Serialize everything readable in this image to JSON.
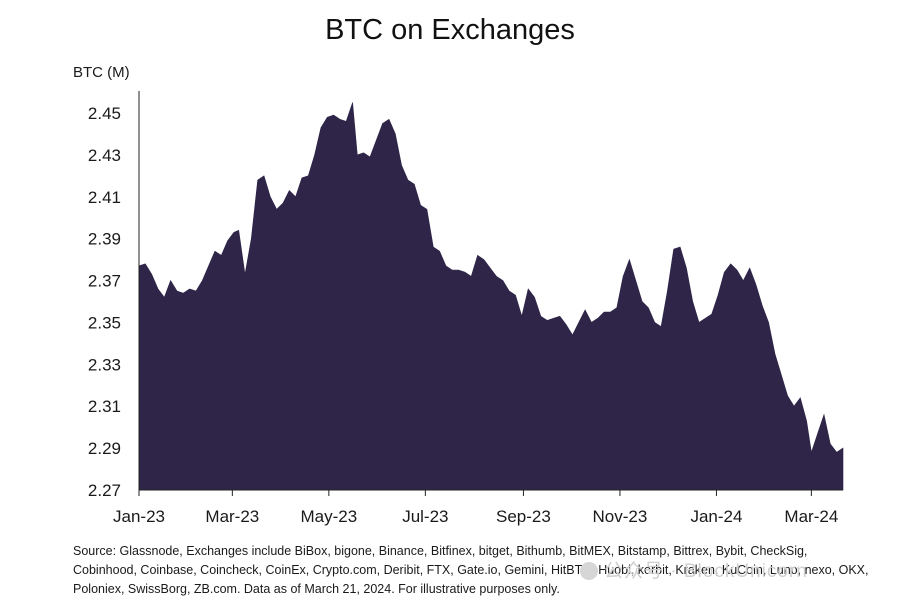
{
  "chart_data": {
    "type": "area",
    "title": "BTC on Exchanges",
    "ylabel": "BTC (M)",
    "xlabel": "",
    "ylim": [
      2.27,
      2.46
    ],
    "y_ticks": [
      "2.45",
      "2.43",
      "2.41",
      "2.39",
      "2.37",
      "2.35",
      "2.33",
      "2.31",
      "2.29",
      "2.27"
    ],
    "x_ticks": [
      "Jan-23",
      "Mar-23",
      "May-23",
      "Jul-23",
      "Sep-23",
      "Nov-23",
      "Jan-24",
      "Mar-24"
    ],
    "x_tick_dates": [
      "2023-01-01",
      "2023-03-01",
      "2023-05-01",
      "2023-07-01",
      "2023-09-01",
      "2023-11-01",
      "2024-01-01",
      "2024-03-01"
    ],
    "x_range": [
      "2023-01-01",
      "2024-03-21"
    ],
    "grid": false,
    "legend": "none",
    "series": [
      {
        "values": [
          [
            "2023-01-01",
            2.377
          ],
          [
            "2023-01-05",
            2.378
          ],
          [
            "2023-01-09",
            2.373
          ],
          [
            "2023-01-13",
            2.366
          ],
          [
            "2023-01-17",
            2.362
          ],
          [
            "2023-01-21",
            2.37
          ],
          [
            "2023-01-25",
            2.365
          ],
          [
            "2023-01-29",
            2.364
          ],
          [
            "2023-02-02",
            2.366
          ],
          [
            "2023-02-06",
            2.365
          ],
          [
            "2023-02-10",
            2.37
          ],
          [
            "2023-02-14",
            2.377
          ],
          [
            "2023-02-18",
            2.384
          ],
          [
            "2023-02-22",
            2.382
          ],
          [
            "2023-02-26",
            2.389
          ],
          [
            "2023-03-02",
            2.393
          ],
          [
            "2023-03-05",
            2.394
          ],
          [
            "2023-03-09",
            2.373
          ],
          [
            "2023-03-13",
            2.39
          ],
          [
            "2023-03-17",
            2.418
          ],
          [
            "2023-03-21",
            2.42
          ],
          [
            "2023-03-25",
            2.41
          ],
          [
            "2023-03-29",
            2.404
          ],
          [
            "2023-04-02",
            2.407
          ],
          [
            "2023-04-06",
            2.413
          ],
          [
            "2023-04-10",
            2.41
          ],
          [
            "2023-04-14",
            2.419
          ],
          [
            "2023-04-18",
            2.42
          ],
          [
            "2023-04-22",
            2.43
          ],
          [
            "2023-04-26",
            2.443
          ],
          [
            "2023-04-30",
            2.448
          ],
          [
            "2023-05-04",
            2.449
          ],
          [
            "2023-05-08",
            2.447
          ],
          [
            "2023-05-12",
            2.446
          ],
          [
            "2023-05-16",
            2.455
          ],
          [
            "2023-05-19",
            2.43
          ],
          [
            "2023-05-23",
            2.431
          ],
          [
            "2023-05-27",
            2.429
          ],
          [
            "2023-05-31",
            2.437
          ],
          [
            "2023-06-04",
            2.445
          ],
          [
            "2023-06-08",
            2.447
          ],
          [
            "2023-06-12",
            2.44
          ],
          [
            "2023-06-16",
            2.425
          ],
          [
            "2023-06-20",
            2.418
          ],
          [
            "2023-06-24",
            2.416
          ],
          [
            "2023-06-28",
            2.406
          ],
          [
            "2023-07-02",
            2.404
          ],
          [
            "2023-07-06",
            2.386
          ],
          [
            "2023-07-10",
            2.384
          ],
          [
            "2023-07-14",
            2.377
          ],
          [
            "2023-07-18",
            2.375
          ],
          [
            "2023-07-22",
            2.375
          ],
          [
            "2023-07-26",
            2.374
          ],
          [
            "2023-07-30",
            2.372
          ],
          [
            "2023-08-03",
            2.382
          ],
          [
            "2023-08-07",
            2.38
          ],
          [
            "2023-08-11",
            2.376
          ],
          [
            "2023-08-15",
            2.372
          ],
          [
            "2023-08-19",
            2.37
          ],
          [
            "2023-08-23",
            2.365
          ],
          [
            "2023-08-27",
            2.363
          ],
          [
            "2023-08-31",
            2.353
          ],
          [
            "2023-09-04",
            2.366
          ],
          [
            "2023-09-08",
            2.362
          ],
          [
            "2023-09-12",
            2.353
          ],
          [
            "2023-09-16",
            2.351
          ],
          [
            "2023-09-20",
            2.352
          ],
          [
            "2023-09-24",
            2.353
          ],
          [
            "2023-09-28",
            2.349
          ],
          [
            "2023-10-02",
            2.344
          ],
          [
            "2023-10-06",
            2.35
          ],
          [
            "2023-10-10",
            2.356
          ],
          [
            "2023-10-14",
            2.35
          ],
          [
            "2023-10-18",
            2.352
          ],
          [
            "2023-10-22",
            2.355
          ],
          [
            "2023-10-26",
            2.355
          ],
          [
            "2023-10-30",
            2.357
          ],
          [
            "2023-11-03",
            2.372
          ],
          [
            "2023-11-07",
            2.38
          ],
          [
            "2023-11-11",
            2.37
          ],
          [
            "2023-11-15",
            2.36
          ],
          [
            "2023-11-19",
            2.357
          ],
          [
            "2023-11-23",
            2.35
          ],
          [
            "2023-11-27",
            2.348
          ],
          [
            "2023-12-01",
            2.365
          ],
          [
            "2023-12-05",
            2.385
          ],
          [
            "2023-12-09",
            2.386
          ],
          [
            "2023-12-13",
            2.376
          ],
          [
            "2023-12-17",
            2.36
          ],
          [
            "2023-12-21",
            2.35
          ],
          [
            "2023-12-25",
            2.352
          ],
          [
            "2023-12-29",
            2.354
          ],
          [
            "2024-01-02",
            2.363
          ],
          [
            "2024-01-06",
            2.374
          ],
          [
            "2024-01-10",
            2.378
          ],
          [
            "2024-01-14",
            2.375
          ],
          [
            "2024-01-18",
            2.37
          ],
          [
            "2024-01-22",
            2.376
          ],
          [
            "2024-01-26",
            2.368
          ],
          [
            "2024-01-30",
            2.358
          ],
          [
            "2024-02-03",
            2.35
          ],
          [
            "2024-02-07",
            2.335
          ],
          [
            "2024-02-11",
            2.325
          ],
          [
            "2024-02-15",
            2.315
          ],
          [
            "2024-02-19",
            2.31
          ],
          [
            "2024-02-23",
            2.314
          ],
          [
            "2024-02-27",
            2.303
          ],
          [
            "2024-03-01",
            2.288
          ],
          [
            "2024-03-05",
            2.297
          ],
          [
            "2024-03-09",
            2.306
          ],
          [
            "2024-03-13",
            2.292
          ],
          [
            "2024-03-17",
            2.288
          ],
          [
            "2024-03-21",
            2.29
          ]
        ]
      }
    ]
  },
  "footnote": "Source: Glassnode, Exchanges include  BiBox, bigone, Binance, Bitfinex, bitget, Bithumb, BitMEX, Bitstamp, Bittrex, Bybit, CheckSig, Cobinhood, Coinbase, Coincheck, CoinEx, Crypto.com, Deribit, FTX, Gate.io, Gemini, HitBTC, Huobi, korbit, Kraken, KuCoin, Luno, nexo, OKX, Poloniex, SwissBorg, ZB.com. Data as of March 21, 2024. For illustrative purposes only.",
  "watermark": "公众号 · BlockUnicorn",
  "colors": {
    "area": "#2e2548",
    "axis": "#222222",
    "text": "#1a1a1a"
  }
}
